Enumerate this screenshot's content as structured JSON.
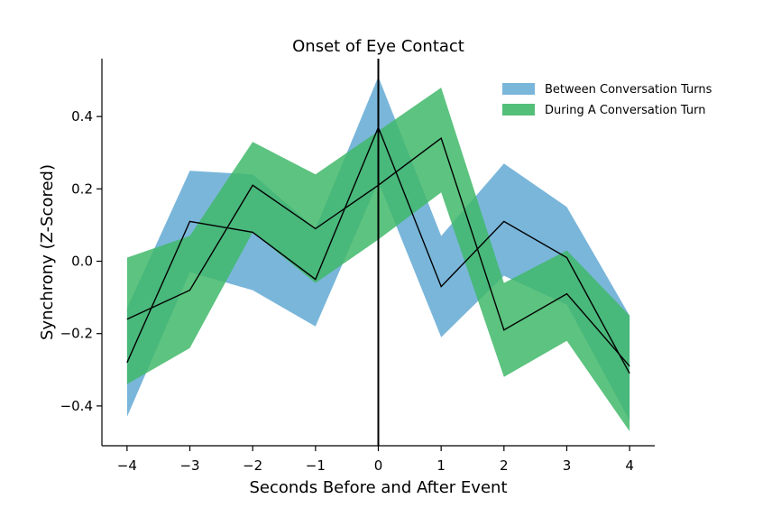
{
  "chart_data": {
    "type": "area",
    "title": "Onset of Eye Contact",
    "xlabel": "Seconds Before and After Event",
    "ylabel": "Synchrony (Z-Scored)",
    "x": [
      -4,
      -3,
      -2,
      -1,
      0,
      1,
      2,
      3,
      4
    ],
    "xticks": [
      -4,
      -3,
      -2,
      -1,
      0,
      1,
      2,
      3,
      4
    ],
    "xtick_labels": [
      "−4",
      "−3",
      "−2",
      "−1",
      "0",
      "1",
      "2",
      "3",
      "4"
    ],
    "yticks": [
      -0.4,
      -0.2,
      0.0,
      0.2,
      0.4
    ],
    "ytick_labels": [
      "−0.4",
      "−0.2",
      "0.0",
      "0.2",
      "0.4"
    ],
    "xlim": [
      -4.4,
      4.4
    ],
    "ylim": [
      -0.51,
      0.56
    ],
    "grid": false,
    "legend_position": "top-right",
    "event_line_x": 0,
    "series": [
      {
        "name": "Between Conversation Turns",
        "color": "#6BAED6",
        "mean": [
          -0.28,
          0.11,
          0.08,
          -0.05,
          0.37,
          -0.07,
          0.11,
          0.01,
          -0.31
        ],
        "lower": [
          -0.43,
          -0.03,
          -0.08,
          -0.18,
          0.22,
          -0.21,
          -0.04,
          -0.12,
          -0.44
        ],
        "upper": [
          -0.13,
          0.25,
          0.24,
          0.09,
          0.51,
          0.07,
          0.27,
          0.15,
          -0.15
        ]
      },
      {
        "name": "During A Conversation Turn",
        "color": "#41B86A",
        "mean": [
          -0.16,
          -0.08,
          0.21,
          0.09,
          0.21,
          0.34,
          -0.19,
          -0.09,
          -0.29
        ],
        "lower": [
          -0.34,
          -0.24,
          0.08,
          -0.06,
          0.06,
          0.19,
          -0.32,
          -0.22,
          -0.47
        ],
        "upper": [
          0.01,
          0.07,
          0.33,
          0.24,
          0.36,
          0.48,
          -0.06,
          0.03,
          -0.15
        ]
      }
    ]
  }
}
